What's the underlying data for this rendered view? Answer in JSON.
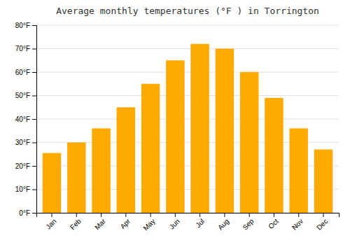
{
  "chart_data": {
    "type": "bar",
    "title": "Average monthly temperatures (°F ) in Torrington",
    "categories": [
      "Jan",
      "Feb",
      "Mar",
      "Apr",
      "May",
      "Jun",
      "Jul",
      "Aug",
      "Sep",
      "Oct",
      "Nov",
      "Dec"
    ],
    "values": [
      25.5,
      30.0,
      36.0,
      45.0,
      55.0,
      65.0,
      72.0,
      70.0,
      60.0,
      49.0,
      36.0,
      27.0
    ],
    "color": "#FFAA00",
    "ylim": [
      0,
      80
    ],
    "yticks": [
      {
        "value": 0,
        "label": "0°F"
      },
      {
        "value": 10,
        "label": "10°F"
      },
      {
        "value": 20,
        "label": "20°F"
      },
      {
        "value": 30,
        "label": "30°F"
      },
      {
        "value": 40,
        "label": "40°F"
      },
      {
        "value": 50,
        "label": "50°F"
      },
      {
        "value": 60,
        "label": "60°F"
      },
      {
        "value": 70,
        "label": "70°F"
      },
      {
        "value": 80,
        "label": "80°F"
      }
    ],
    "grid": true
  }
}
